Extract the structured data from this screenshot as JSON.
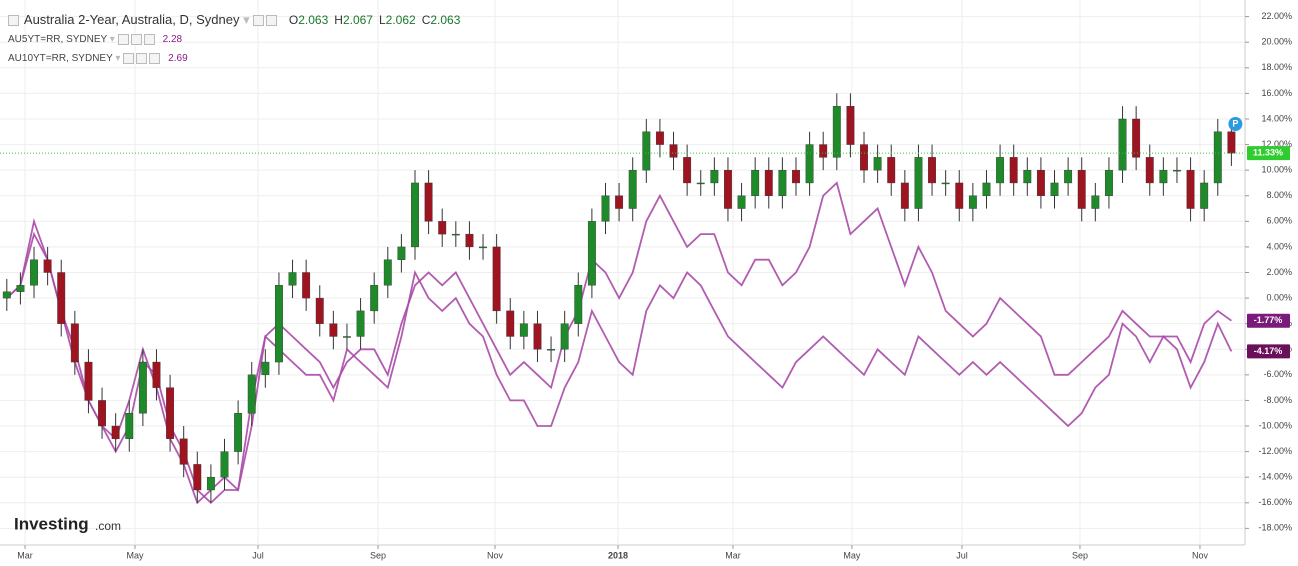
{
  "chart_data": {
    "type": "candlestick",
    "title": "Australia 2-Year, Australia, D, Sydney",
    "ohlc": [
      {
        "label": "O",
        "value": 2.063
      },
      {
        "label": "H",
        "value": 2.067
      },
      {
        "label": "L",
        "value": 2.062
      },
      {
        "label": "C",
        "value": 2.063
      }
    ],
    "watermark": [
      "Investing",
      ".com"
    ],
    "badge": "P",
    "x": [
      0,
      1,
      2,
      3,
      4,
      5,
      6,
      7,
      8,
      9,
      10,
      11,
      12,
      13,
      14,
      15,
      16,
      17,
      18,
      19,
      20,
      21,
      22,
      23,
      24,
      25,
      26,
      27,
      28,
      29,
      30,
      31,
      32,
      33,
      34,
      35,
      36,
      37,
      38,
      39,
      40,
      41,
      42,
      43,
      44,
      45,
      46,
      47,
      48,
      49,
      50,
      51,
      52,
      53,
      54,
      55,
      56,
      57,
      58,
      59,
      60,
      61,
      62,
      63,
      64,
      65,
      66,
      67,
      68,
      69,
      70,
      71,
      72,
      73,
      74,
      75,
      76,
      77,
      78,
      79,
      80,
      81,
      82,
      83,
      84,
      85,
      86,
      87,
      88,
      89,
      90
    ],
    "open": [
      0,
      0.5,
      1,
      3,
      2,
      -2,
      -5,
      -8,
      -10,
      -11,
      -9,
      -5,
      -7,
      -11,
      -13,
      -15,
      -14,
      -12,
      -9,
      -6,
      -5,
      1,
      2,
      0,
      -2,
      -3,
      -3,
      -1,
      1,
      3,
      4,
      9,
      6,
      5,
      5,
      4,
      4,
      -1,
      -3,
      -2,
      -4,
      -4,
      -2,
      1,
      6,
      8,
      7,
      10,
      13,
      12,
      11,
      9,
      9,
      10,
      7,
      8,
      10,
      8,
      10,
      9,
      12,
      11,
      15,
      12,
      10,
      11,
      9,
      7,
      11,
      9,
      9,
      7,
      8,
      9,
      11,
      9,
      10,
      8,
      9,
      10,
      7,
      8,
      10,
      14,
      11,
      9,
      10,
      10,
      7,
      9,
      13
    ],
    "high": [
      1.5,
      2,
      4,
      4,
      3,
      -1,
      -4,
      -7,
      -9,
      -8,
      -4,
      -4,
      -6,
      -10,
      -12,
      -13,
      -11,
      -8,
      -5,
      -4,
      2,
      3,
      3,
      1,
      -1,
      -2,
      0,
      2,
      4,
      5,
      10,
      10,
      7,
      6,
      6,
      5,
      5,
      0,
      -1,
      -1,
      -3,
      -1,
      2,
      7,
      9,
      9,
      11,
      14,
      14,
      13,
      12,
      10,
      11,
      11,
      9,
      11,
      11,
      11,
      11,
      13,
      13,
      16,
      16,
      13,
      12,
      12,
      10,
      12,
      12,
      10,
      10,
      9,
      10,
      12,
      12,
      11,
      11,
      10,
      11,
      11,
      9,
      11,
      15,
      15,
      12,
      11,
      11,
      11,
      10,
      14,
      14
    ],
    "low": [
      -1,
      -0.5,
      0,
      1,
      -3,
      -6,
      -9,
      -11,
      -12,
      -12,
      -10,
      -8,
      -12,
      -14,
      -16,
      -16,
      -15,
      -13,
      -10,
      -7,
      -6,
      0,
      -1,
      -3,
      -4,
      -4,
      -4,
      -2,
      0,
      2,
      3,
      5,
      4,
      4,
      3,
      3,
      -2,
      -4,
      -4,
      -5,
      -5,
      -5,
      -3,
      0,
      5,
      6,
      6,
      9,
      11,
      10,
      8,
      8,
      8,
      6,
      6,
      7,
      7,
      7,
      8,
      8,
      10,
      10,
      11,
      9,
      9,
      8,
      6,
      6,
      8,
      8,
      6,
      6,
      7,
      8,
      8,
      8,
      7,
      7,
      8,
      6,
      6,
      7,
      9,
      10,
      8,
      8,
      9,
      6,
      6,
      8,
      10.33
    ],
    "close": [
      0.5,
      1,
      3,
      2,
      -2,
      -5,
      -8,
      -10,
      -11,
      -9,
      -5,
      -7,
      -11,
      -13,
      -15,
      -14,
      -12,
      -9,
      -6,
      -5,
      1,
      2,
      0,
      -2,
      -3,
      -3,
      -1,
      1,
      3,
      4,
      9,
      6,
      5,
      5,
      4,
      4,
      -1,
      -3,
      -2,
      -4,
      -4,
      -2,
      1,
      6,
      8,
      7,
      10,
      13,
      12,
      11,
      9,
      9,
      10,
      7,
      8,
      10,
      8,
      10,
      9,
      12,
      11,
      15,
      12,
      10,
      11,
      9,
      7,
      11,
      9,
      9,
      7,
      8,
      9,
      11,
      9,
      10,
      8,
      9,
      10,
      7,
      8,
      10,
      14,
      11,
      9,
      10,
      10,
      7,
      9,
      13,
      11.33
    ],
    "color_up": "#1f8a2a",
    "color_down": "#9e1420",
    "end_label": {
      "value": 11.33,
      "label": "11.33%"
    },
    "end_color": "#2ecc2e",
    "series": [
      {
        "name": "AU5YT=RR, SYDNEY",
        "type": "line",
        "color": "#a84aa8",
        "last_price": 2.28,
        "end_label": {
          "value": -1.77,
          "label": "-1.77%"
        },
        "values": [
          0,
          1,
          5,
          3,
          -1,
          -5,
          -8,
          -10,
          -11,
          -8,
          -4,
          -7,
          -11,
          -13,
          -16,
          -15,
          -14,
          -15,
          -10,
          -3,
          -2,
          -3,
          -4,
          -5,
          -7,
          -5,
          -4,
          -4,
          -6,
          -2,
          1,
          2,
          1,
          2,
          0,
          -2,
          -4,
          -6,
          -5,
          -6,
          -7,
          -3,
          -1,
          3,
          2,
          0,
          2,
          6,
          8,
          6,
          4,
          5,
          5,
          2,
          1,
          3,
          3,
          1,
          2,
          4,
          8,
          9,
          5,
          6,
          7,
          4,
          1,
          4,
          2,
          -1,
          -2,
          -3,
          -2,
          0,
          -1,
          -2,
          -3,
          -6,
          -6,
          -5,
          -4,
          -3,
          -1,
          -2,
          -3,
          -3,
          -3,
          -5,
          -2,
          -1,
          -1.77
        ]
      },
      {
        "name": "AU10YT=RR, SYDNEY",
        "type": "line",
        "color": "#a84aa8",
        "last_price": 2.69,
        "end_label": {
          "value": -4.17,
          "label": "-4.17%"
        },
        "values": [
          0,
          1,
          6,
          3,
          -1,
          -4,
          -8,
          -10,
          -12,
          -10,
          -5,
          -6,
          -10,
          -12,
          -15,
          -16,
          -15,
          -15,
          -8,
          -3,
          -4,
          -5,
          -6,
          -6,
          -8,
          -4,
          -5,
          -6,
          -7,
          -3,
          2,
          0,
          -1,
          0,
          -2,
          -3,
          -6,
          -8,
          -8,
          -10,
          -10,
          -7,
          -5,
          -1,
          -3,
          -5,
          -6,
          -1,
          1,
          0,
          2,
          1,
          -1,
          -3,
          -4,
          -5,
          -6,
          -7,
          -5,
          -4,
          -3,
          -4,
          -5,
          -6,
          -4,
          -5,
          -6,
          -3,
          -4,
          -5,
          -6,
          -5,
          -6,
          -5,
          -6,
          -7,
          -8,
          -9,
          -10,
          -9,
          -7,
          -6,
          -2,
          -3,
          -5,
          -3,
          -4,
          -7,
          -5,
          -2,
          -4.17
        ]
      }
    ],
    "xlim": [
      -0.5,
      91
    ],
    "xticks": [
      {
        "value": 1.34,
        "label": "Mar"
      },
      {
        "value": 9.42,
        "label": "May"
      },
      {
        "value": 18.46,
        "label": "Jul"
      },
      {
        "value": 27.28,
        "label": "Sep"
      },
      {
        "value": 35.88,
        "label": "Nov"
      },
      {
        "value": 44.92,
        "label": "2018"
      },
      {
        "value": 53.37,
        "label": "Mar"
      },
      {
        "value": 62.11,
        "label": "May"
      },
      {
        "value": 70.2,
        "label": "Jul"
      },
      {
        "value": 78.87,
        "label": "Sep"
      },
      {
        "value": 87.69,
        "label": "Nov"
      }
    ],
    "ylim": [
      -19.3,
      23.3
    ],
    "yticks": [
      {
        "value": -18,
        "label": "-18.00%"
      },
      {
        "value": -16,
        "label": "-16.00%"
      },
      {
        "value": -14,
        "label": "-14.00%"
      },
      {
        "value": -12,
        "label": "-12.00%"
      },
      {
        "value": -10,
        "label": "-10.00%"
      },
      {
        "value": -8,
        "label": "-8.00%"
      },
      {
        "value": -6,
        "label": "-6.00%"
      },
      {
        "value": -4,
        "label": "-4.00%"
      },
      {
        "value": -2,
        "label": "-2.00%"
      },
      {
        "value": 0,
        "label": "0.00%"
      },
      {
        "value": 2,
        "label": "2.00%"
      },
      {
        "value": 4,
        "label": "4.00%"
      },
      {
        "value": 6,
        "label": "6.00%"
      },
      {
        "value": 8,
        "label": "8.00%"
      },
      {
        "value": 10,
        "label": "10.00%"
      },
      {
        "value": 12,
        "label": "12.00%"
      },
      {
        "value": 14,
        "label": "14.00%"
      },
      {
        "value": 16,
        "label": "16.00%"
      },
      {
        "value": 18,
        "label": "18.00%"
      },
      {
        "value": 20,
        "label": "20.00%"
      },
      {
        "value": 22,
        "label": "22.00%"
      }
    ],
    "grid": true
  }
}
